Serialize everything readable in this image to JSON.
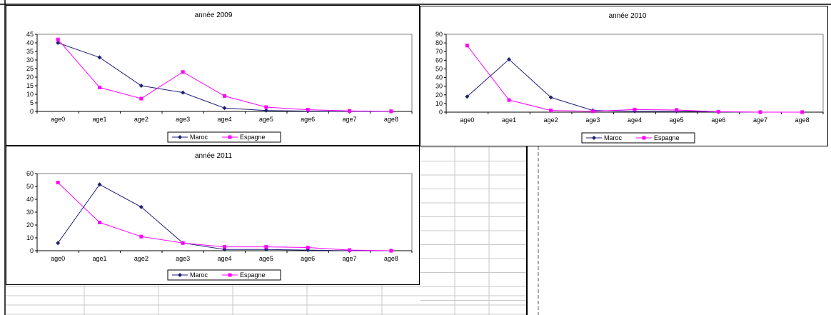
{
  "colors": {
    "maroc": "#1f1f7a",
    "espagne": "#ff00ff",
    "plot_border": "#808080",
    "sheet_grid": "#c8c8c8"
  },
  "chart_data": [
    {
      "type": "line",
      "title": "année 2009",
      "categories": [
        "age0",
        "age1",
        "age2",
        "age3",
        "age4",
        "age5",
        "age6",
        "age7",
        "age8"
      ],
      "series": [
        {
          "name": "Maroc",
          "values": [
            40,
            31.5,
            15,
            11,
            2,
            0.5,
            0.2,
            0,
            0
          ]
        },
        {
          "name": "Espagne",
          "values": [
            42,
            14,
            7.5,
            23,
            9,
            2.5,
            1,
            0.3,
            0.1
          ]
        }
      ],
      "yticks": [
        "0",
        "5",
        "10",
        "15",
        "20",
        "25",
        "30",
        "35",
        "40",
        "45"
      ],
      "ylim": [
        0,
        45
      ],
      "legend": "bottom"
    },
    {
      "type": "line",
      "title": "année 2010",
      "categories": [
        "age0",
        "age1",
        "age2",
        "age3",
        "age4",
        "age5",
        "age6",
        "age7",
        "age8"
      ],
      "series": [
        {
          "name": "Maroc",
          "values": [
            18,
            61,
            17,
            2,
            1,
            1,
            0.3,
            0,
            0
          ]
        },
        {
          "name": "Espagne",
          "values": [
            77,
            14,
            2,
            1,
            3,
            2.5,
            0.5,
            0,
            0
          ]
        }
      ],
      "yticks": [
        "0",
        "10",
        "20",
        "30",
        "40",
        "50",
        "60",
        "70",
        "80",
        "90"
      ],
      "ylim": [
        0,
        90
      ],
      "legend": "bottom"
    },
    {
      "type": "line",
      "title": "année 2011",
      "categories": [
        "age0",
        "age1",
        "age2",
        "age3",
        "age4",
        "age5",
        "age6",
        "age7",
        "age8"
      ],
      "series": [
        {
          "name": "Maroc",
          "values": [
            6,
            51.5,
            34,
            6,
            1,
            1,
            0.5,
            0,
            0
          ]
        },
        {
          "name": "Espagne",
          "values": [
            53,
            22,
            11,
            6,
            3,
            3,
            2.5,
            0.5,
            0
          ]
        }
      ],
      "yticks": [
        "0",
        "10",
        "20",
        "30",
        "40",
        "50",
        "60"
      ],
      "ylim": [
        0,
        60
      ],
      "legend": "bottom"
    }
  ]
}
